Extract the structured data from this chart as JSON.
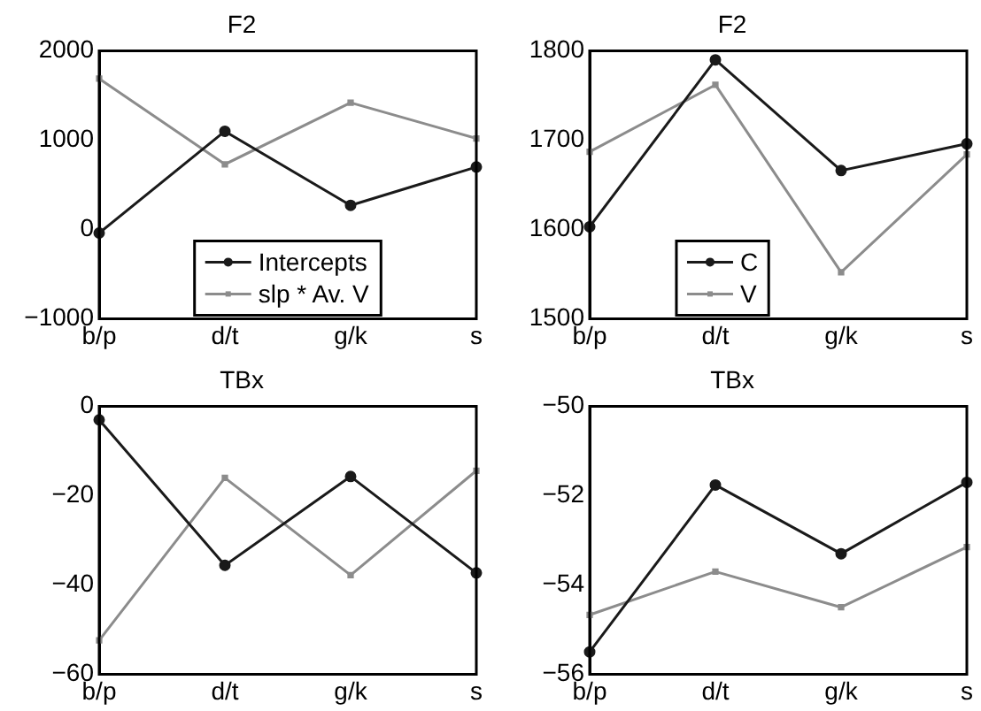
{
  "chart_data": [
    {
      "type": "line",
      "title": "F2",
      "categories": [
        "b/p",
        "d/t",
        "g/k",
        "s"
      ],
      "ylim": [
        -1000,
        2000
      ],
      "yticks": [
        -1000,
        0,
        1000,
        2000
      ],
      "grid": false,
      "legend": "bottom",
      "series": [
        {
          "name": "Intercepts",
          "color": "#1a1a1a",
          "marker": "circle",
          "values": [
            -40,
            1100,
            270,
            700
          ]
        },
        {
          "name": "slp * Av. V",
          "color": "#8c8c8c",
          "marker": "square",
          "values": [
            1690,
            730,
            1420,
            1020
          ]
        }
      ]
    },
    {
      "type": "line",
      "title": "F2",
      "categories": [
        "b/p",
        "d/t",
        "g/k",
        "s"
      ],
      "ylim": [
        1500,
        1800
      ],
      "yticks": [
        1500,
        1600,
        1700,
        1800
      ],
      "grid": false,
      "legend": "bottom left",
      "series": [
        {
          "name": "C",
          "color": "#1a1a1a",
          "marker": "circle",
          "values": [
            1603,
            1790,
            1666,
            1696
          ]
        },
        {
          "name": "V",
          "color": "#8c8c8c",
          "marker": "square",
          "values": [
            1687,
            1762,
            1552,
            1684
          ]
        }
      ]
    },
    {
      "type": "line",
      "title": "TBx",
      "categories": [
        "b/p",
        "d/t",
        "g/k",
        "s"
      ],
      "ylim": [
        -60,
        0
      ],
      "yticks": [
        -60,
        -40,
        -20,
        0
      ],
      "grid": false,
      "series": [
        {
          "color": "#1a1a1a",
          "marker": "circle",
          "values": [
            -3,
            -35.6,
            -15.7,
            -37.3
          ]
        },
        {
          "color": "#8c8c8c",
          "marker": "square",
          "values": [
            -52.4,
            -16,
            -37.8,
            -14.4
          ]
        }
      ]
    },
    {
      "type": "line",
      "title": "TBx",
      "categories": [
        "b/p",
        "d/t",
        "g/k",
        "s"
      ],
      "ylim": [
        -56,
        -50
      ],
      "yticks": [
        -56,
        -54,
        -52,
        -50
      ],
      "grid": false,
      "series": [
        {
          "color": "#1a1a1a",
          "marker": "circle",
          "values": [
            -55.5,
            -51.76,
            -53.3,
            -51.7
          ]
        },
        {
          "color": "#8c8c8c",
          "marker": "square",
          "values": [
            -54.67,
            -53.7,
            -54.5,
            -53.15
          ]
        }
      ]
    }
  ]
}
